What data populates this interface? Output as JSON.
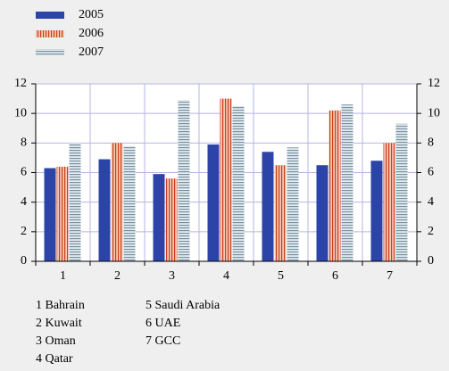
{
  "chart_data": {
    "type": "bar",
    "categories": [
      "1",
      "2",
      "3",
      "4",
      "5",
      "6",
      "7"
    ],
    "series": [
      {
        "name": "2005",
        "color": "#2c44a8",
        "pattern": "solid",
        "values": [
          6.3,
          6.9,
          5.9,
          7.9,
          7.4,
          6.5,
          6.8
        ]
      },
      {
        "name": "2006",
        "color": "#c8401c",
        "pattern": "vertical",
        "values": [
          6.4,
          8.0,
          5.6,
          11.0,
          6.5,
          10.2,
          8.0
        ]
      },
      {
        "name": "2007",
        "color": "#7890a0",
        "pattern": "horizontal",
        "values": [
          8.0,
          7.8,
          10.9,
          10.5,
          7.7,
          10.6,
          9.3
        ]
      }
    ],
    "ylim": [
      0,
      12
    ],
    "yticks": [
      0,
      2,
      4,
      6,
      8,
      10,
      12
    ],
    "grid": true,
    "legend": "top-left",
    "notes": [
      "1 Bahrain",
      "2 Kuwait",
      "3 Oman",
      "4 Qatar",
      "5 Saudi Arabia",
      "6 UAE",
      "7 GCC"
    ]
  }
}
